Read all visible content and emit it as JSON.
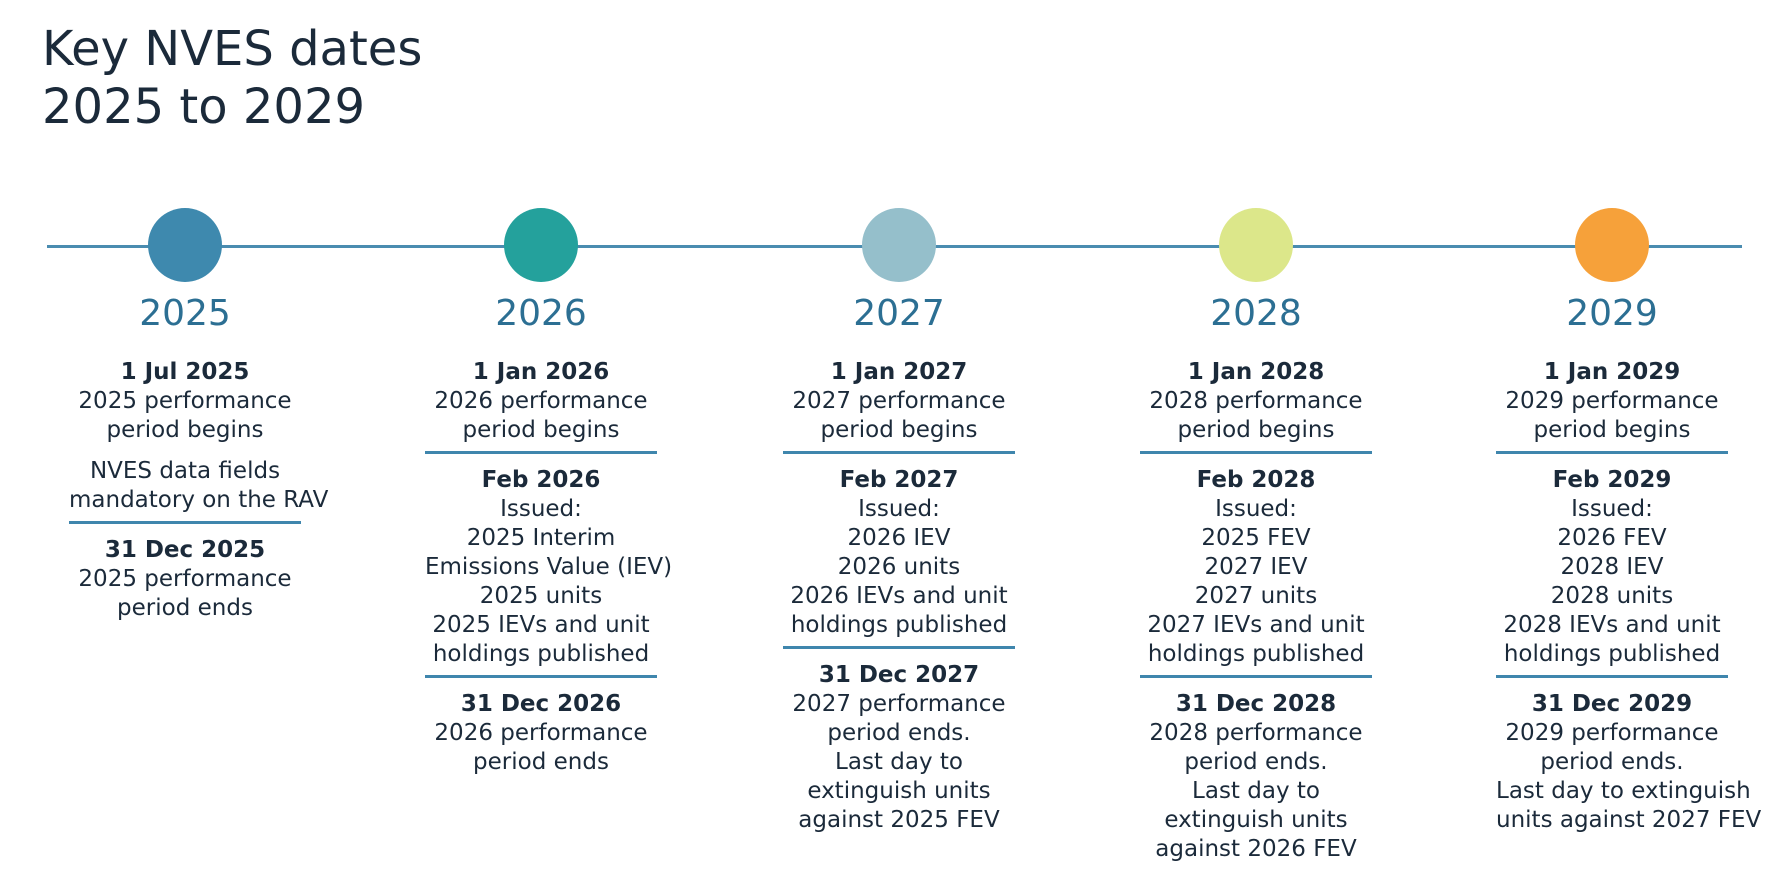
{
  "title": [
    "Key NVES dates",
    "2025 to 2029"
  ],
  "columns": [
    {
      "year": "2025",
      "color": "#3e89ae",
      "blocks": [
        {
          "date": "1 Jul 2025",
          "lines": [
            "2025 performance",
            "period begins"
          ],
          "separator": false
        },
        {
          "date": "",
          "lines": [
            "NVES data fields",
            "mandatory on the RAV"
          ],
          "separator": true
        },
        {
          "date": "31 Dec 2025",
          "lines": [
            "2025 performance",
            "period ends"
          ],
          "separator": false
        }
      ]
    },
    {
      "year": "2026",
      "color": "#24a19c",
      "blocks": [
        {
          "date": "1 Jan 2026",
          "lines": [
            "2026 performance",
            "period begins"
          ],
          "separator": true
        },
        {
          "date": "Feb 2026",
          "lines": [
            "Issued:",
            "2025 Interim",
            "Emissions Value (IEV)",
            "2025 units",
            "2025 IEVs and unit",
            "holdings published"
          ],
          "separator": true
        },
        {
          "date": "31 Dec 2026",
          "lines": [
            "2026 performance",
            "period ends"
          ],
          "separator": false
        }
      ]
    },
    {
      "year": "2027",
      "color": "#95bfcb",
      "blocks": [
        {
          "date": "1 Jan 2027",
          "lines": [
            "2027 performance",
            "period begins"
          ],
          "separator": true
        },
        {
          "date": "Feb 2027",
          "lines": [
            "Issued:",
            "2026 IEV",
            "2026 units",
            "2026 IEVs and unit",
            "holdings published"
          ],
          "separator": true
        },
        {
          "date": "31 Dec 2027",
          "lines": [
            "2027 performance",
            "period ends.",
            "Last day to",
            "extinguish units",
            "against 2025 FEV"
          ],
          "separator": false
        }
      ]
    },
    {
      "year": "2028",
      "color": "#dce78a",
      "blocks": [
        {
          "date": "1 Jan 2028",
          "lines": [
            "2028 performance",
            "period begins"
          ],
          "separator": true
        },
        {
          "date": "Feb 2028",
          "lines": [
            "Issued:",
            "2025 FEV",
            "2027 IEV",
            "2027 units",
            "2027 IEVs and unit",
            "holdings published"
          ],
          "separator": true
        },
        {
          "date": "31 Dec 2028",
          "lines": [
            "2028 performance",
            "period ends.",
            "Last day to",
            "extinguish units",
            "against 2026 FEV"
          ],
          "separator": false
        }
      ]
    },
    {
      "year": "2029",
      "color": "#f6a13a",
      "blocks": [
        {
          "date": "1 Jan 2029",
          "lines": [
            "2029 performance",
            "period begins"
          ],
          "separator": true
        },
        {
          "date": "Feb 2029",
          "lines": [
            "Issued:",
            "2026 FEV",
            "2028 IEV",
            "2028 units",
            "2028 IEVs and unit",
            "holdings published"
          ],
          "separator": true
        },
        {
          "date": "31 Dec 2029",
          "lines": [
            "2029 performance",
            "period ends.",
            "Last day to extinguish",
            "units against 2027 FEV"
          ],
          "separator": false
        }
      ]
    }
  ]
}
